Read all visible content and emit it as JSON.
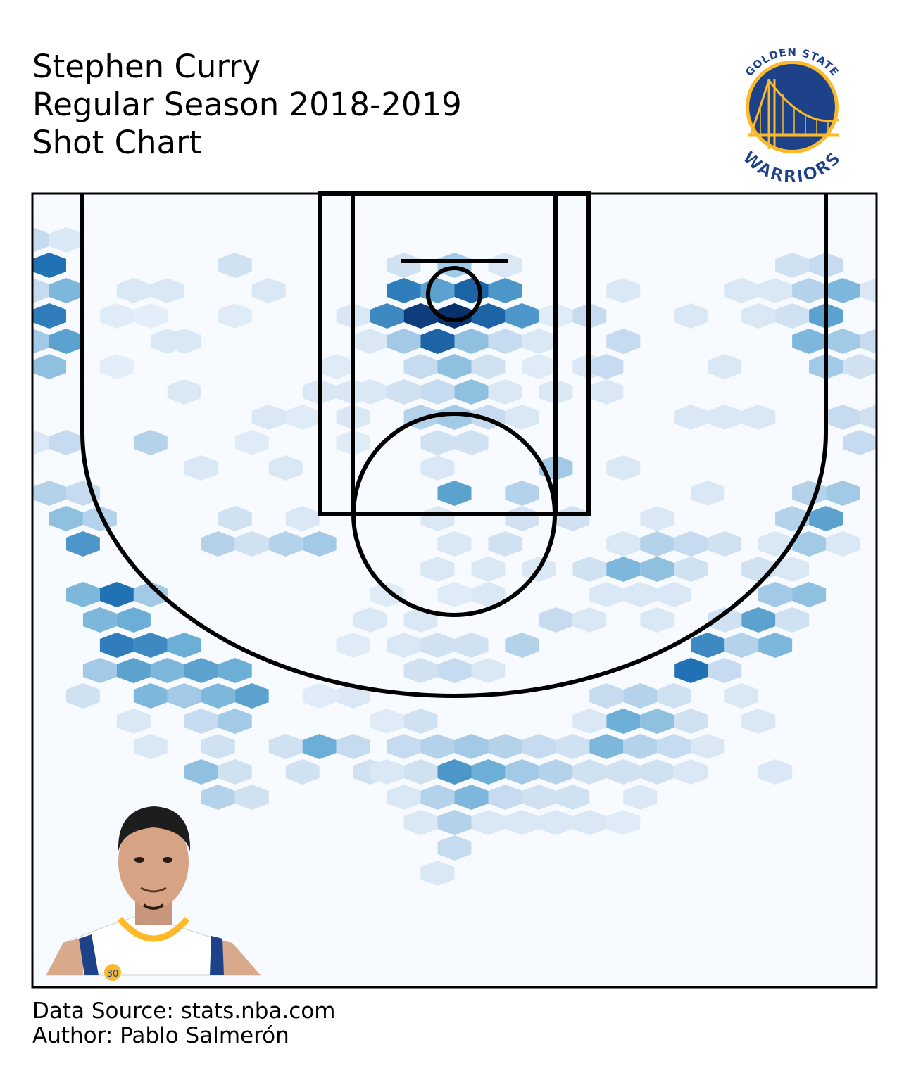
{
  "header": {
    "title_lines": [
      "Stephen Curry",
      "Regular Season 2018-2019",
      "Shot Chart"
    ]
  },
  "logo": {
    "top_text": "GOLDEN STATE",
    "bottom_text": "WARRIORS",
    "colors": {
      "navy": "#1D428A",
      "gold": "#FDB927"
    }
  },
  "footer": {
    "source": "Data Source: stats.nba.com",
    "author": "Author: Pablo Salmerón"
  },
  "player_photo": {
    "jersey_number": "30"
  },
  "chart_data": {
    "type": "heatmap",
    "subtype": "hexbin",
    "title": "",
    "xlabel": "",
    "ylabel": "",
    "colormap": "Blues",
    "grid": false,
    "note": "Shot density on an NBA half court, x from -250 to 250, y from -47.5 to 422.5; intensity 0-1 relative to max bin",
    "xlim": [
      -250,
      250
    ],
    "ylim": [
      -47.5,
      422.5
    ],
    "hex_size": 20,
    "bins": [
      {
        "x": -250,
        "y": -20,
        "v": 0.25
      },
      {
        "x": -230,
        "y": -20,
        "v": 0.15
      },
      {
        "x": -240,
        "y": -5,
        "v": 0.75
      },
      {
        "x": -250,
        "y": 10,
        "v": 0.25
      },
      {
        "x": -230,
        "y": 10,
        "v": 0.45
      },
      {
        "x": -190,
        "y": 10,
        "v": 0.15
      },
      {
        "x": -170,
        "y": 10,
        "v": 0.15
      },
      {
        "x": -240,
        "y": 25,
        "v": 0.7
      },
      {
        "x": -200,
        "y": 25,
        "v": 0.12
      },
      {
        "x": -250,
        "y": 40,
        "v": 0.35
      },
      {
        "x": -230,
        "y": 40,
        "v": 0.55
      },
      {
        "x": -170,
        "y": 40,
        "v": 0.15
      },
      {
        "x": -240,
        "y": 55,
        "v": 0.4
      },
      {
        "x": -250,
        "y": 100,
        "v": 0.15
      },
      {
        "x": -230,
        "y": 100,
        "v": 0.25
      },
      {
        "x": -180,
        "y": 100,
        "v": 0.3
      },
      {
        "x": -240,
        "y": 130,
        "v": 0.3
      },
      {
        "x": -220,
        "y": 130,
        "v": 0.25
      },
      {
        "x": -230,
        "y": 145,
        "v": 0.4
      },
      {
        "x": -210,
        "y": 145,
        "v": 0.3
      },
      {
        "x": -220,
        "y": 160,
        "v": 0.6
      },
      {
        "x": -220,
        "y": 190,
        "v": 0.45
      },
      {
        "x": -200,
        "y": 190,
        "v": 0.75
      },
      {
        "x": -180,
        "y": 190,
        "v": 0.35
      },
      {
        "x": -210,
        "y": 205,
        "v": 0.45
      },
      {
        "x": -190,
        "y": 205,
        "v": 0.5
      },
      {
        "x": -200,
        "y": 220,
        "v": 0.7
      },
      {
        "x": -180,
        "y": 220,
        "v": 0.65
      },
      {
        "x": -160,
        "y": 220,
        "v": 0.5
      },
      {
        "x": -210,
        "y": 235,
        "v": 0.35
      },
      {
        "x": -190,
        "y": 235,
        "v": 0.55
      },
      {
        "x": -170,
        "y": 235,
        "v": 0.45
      },
      {
        "x": -150,
        "y": 235,
        "v": 0.55
      },
      {
        "x": -130,
        "y": 235,
        "v": 0.5
      },
      {
        "x": -220,
        "y": 250,
        "v": 0.2
      },
      {
        "x": -180,
        "y": 250,
        "v": 0.45
      },
      {
        "x": -160,
        "y": 250,
        "v": 0.35
      },
      {
        "x": -140,
        "y": 250,
        "v": 0.45
      },
      {
        "x": -120,
        "y": 250,
        "v": 0.55
      },
      {
        "x": -190,
        "y": 265,
        "v": 0.15
      },
      {
        "x": -150,
        "y": 265,
        "v": 0.25
      },
      {
        "x": -130,
        "y": 265,
        "v": 0.35
      },
      {
        "x": -180,
        "y": 280,
        "v": 0.15
      },
      {
        "x": -140,
        "y": 280,
        "v": 0.2
      },
      {
        "x": -150,
        "y": 295,
        "v": 0.4
      },
      {
        "x": -130,
        "y": 295,
        "v": 0.2
      },
      {
        "x": -140,
        "y": 310,
        "v": 0.3
      },
      {
        "x": -120,
        "y": 310,
        "v": 0.2
      },
      {
        "x": -100,
        "y": 280,
        "v": 0.2
      },
      {
        "x": -80,
        "y": 280,
        "v": 0.5
      },
      {
        "x": -60,
        "y": 280,
        "v": 0.25
      },
      {
        "x": -90,
        "y": 295,
        "v": 0.2
      },
      {
        "x": -50,
        "y": 295,
        "v": 0.2
      },
      {
        "x": -60,
        "y": 250,
        "v": 0.15
      },
      {
        "x": -80,
        "y": 250,
        "v": 0.12
      },
      {
        "x": -40,
        "y": 265,
        "v": 0.12
      },
      {
        "x": -20,
        "y": 265,
        "v": 0.2
      },
      {
        "x": -30,
        "y": 280,
        "v": 0.25
      },
      {
        "x": -10,
        "y": 280,
        "v": 0.3
      },
      {
        "x": 10,
        "y": 280,
        "v": 0.35
      },
      {
        "x": 30,
        "y": 280,
        "v": 0.3
      },
      {
        "x": 50,
        "y": 280,
        "v": 0.25
      },
      {
        "x": 70,
        "y": 280,
        "v": 0.2
      },
      {
        "x": -40,
        "y": 295,
        "v": 0.15
      },
      {
        "x": -20,
        "y": 295,
        "v": 0.2
      },
      {
        "x": 0,
        "y": 295,
        "v": 0.6
      },
      {
        "x": 20,
        "y": 295,
        "v": 0.5
      },
      {
        "x": 40,
        "y": 295,
        "v": 0.35
      },
      {
        "x": 60,
        "y": 295,
        "v": 0.3
      },
      {
        "x": 80,
        "y": 295,
        "v": 0.2
      },
      {
        "x": -30,
        "y": 310,
        "v": 0.15
      },
      {
        "x": -10,
        "y": 310,
        "v": 0.3
      },
      {
        "x": 10,
        "y": 310,
        "v": 0.45
      },
      {
        "x": 30,
        "y": 310,
        "v": 0.25
      },
      {
        "x": 50,
        "y": 310,
        "v": 0.2
      },
      {
        "x": 70,
        "y": 310,
        "v": 0.2
      },
      {
        "x": -20,
        "y": 325,
        "v": 0.15
      },
      {
        "x": 0,
        "y": 325,
        "v": 0.3
      },
      {
        "x": 20,
        "y": 325,
        "v": 0.15
      },
      {
        "x": 40,
        "y": 325,
        "v": 0.15
      },
      {
        "x": 60,
        "y": 325,
        "v": 0.15
      },
      {
        "x": 0,
        "y": 340,
        "v": 0.25
      },
      {
        "x": -10,
        "y": 355,
        "v": 0.15
      },
      {
        "x": -20,
        "y": 235,
        "v": 0.2
      },
      {
        "x": 0,
        "y": 235,
        "v": 0.25
      },
      {
        "x": 20,
        "y": 235,
        "v": 0.15
      },
      {
        "x": -30,
        "y": 220,
        "v": 0.15
      },
      {
        "x": -10,
        "y": 220,
        "v": 0.2
      },
      {
        "x": 10,
        "y": 220,
        "v": 0.2
      },
      {
        "x": 40,
        "y": 220,
        "v": 0.3
      },
      {
        "x": -60,
        "y": 220,
        "v": 0.12
      },
      {
        "x": 60,
        "y": 205,
        "v": 0.25
      },
      {
        "x": -50,
        "y": 205,
        "v": 0.15
      },
      {
        "x": -20,
        "y": 205,
        "v": 0.15
      },
      {
        "x": -40,
        "y": 190,
        "v": 0.12
      },
      {
        "x": 0,
        "y": 190,
        "v": 0.12
      },
      {
        "x": 20,
        "y": 190,
        "v": 0.15
      },
      {
        "x": -10,
        "y": 175,
        "v": 0.15
      },
      {
        "x": 20,
        "y": 175,
        "v": 0.15
      },
      {
        "x": 50,
        "y": 175,
        "v": 0.15
      },
      {
        "x": 0,
        "y": 160,
        "v": 0.15
      },
      {
        "x": 30,
        "y": 160,
        "v": 0.2
      },
      {
        "x": -10,
        "y": 145,
        "v": 0.15
      },
      {
        "x": 40,
        "y": 145,
        "v": 0.2
      },
      {
        "x": 70,
        "y": 145,
        "v": 0.2
      },
      {
        "x": 0,
        "y": 130,
        "v": 0.55
      },
      {
        "x": 40,
        "y": 130,
        "v": 0.3
      },
      {
        "x": -10,
        "y": 115,
        "v": 0.15
      },
      {
        "x": 60,
        "y": 115,
        "v": 0.35
      },
      {
        "x": -140,
        "y": 160,
        "v": 0.3
      },
      {
        "x": -120,
        "y": 160,
        "v": 0.2
      },
      {
        "x": -100,
        "y": 160,
        "v": 0.3
      },
      {
        "x": -80,
        "y": 160,
        "v": 0.35
      },
      {
        "x": -130,
        "y": 145,
        "v": 0.2
      },
      {
        "x": -90,
        "y": 145,
        "v": 0.15
      },
      {
        "x": -150,
        "y": 115,
        "v": 0.15
      },
      {
        "x": -100,
        "y": 115,
        "v": 0.15
      },
      {
        "x": -120,
        "y": 100,
        "v": 0.12
      },
      {
        "x": -60,
        "y": 100,
        "v": 0.12
      },
      {
        "x": -110,
        "y": 85,
        "v": 0.15
      },
      {
        "x": -90,
        "y": 85,
        "v": 0.12
      },
      {
        "x": -80,
        "y": 70,
        "v": 0.15
      },
      {
        "x": -60,
        "y": 70,
        "v": 0.15
      },
      {
        "x": -160,
        "y": 70,
        "v": 0.15
      },
      {
        "x": -160,
        "y": 40,
        "v": 0.15
      },
      {
        "x": -110,
        "y": 10,
        "v": 0.15
      },
      {
        "x": -130,
        "y": 25,
        "v": 0.12
      },
      {
        "x": -130,
        "y": -5,
        "v": 0.2
      },
      {
        "x": -200,
        "y": 55,
        "v": 0.1
      },
      {
        "x": -180,
        "y": 25,
        "v": 0.1
      },
      {
        "x": 0,
        "y": -5,
        "v": 0.35
      },
      {
        "x": -10,
        "y": 10,
        "v": 0.55
      },
      {
        "x": 10,
        "y": 10,
        "v": 0.8
      },
      {
        "x": -30,
        "y": 10,
        "v": 0.7
      },
      {
        "x": 30,
        "y": 10,
        "v": 0.6
      },
      {
        "x": -20,
        "y": 25,
        "v": 0.95
      },
      {
        "x": 0,
        "y": 25,
        "v": 1.0
      },
      {
        "x": -40,
        "y": 25,
        "v": 0.65
      },
      {
        "x": 20,
        "y": 25,
        "v": 0.8
      },
      {
        "x": 40,
        "y": 25,
        "v": 0.6
      },
      {
        "x": -10,
        "y": 40,
        "v": 0.8
      },
      {
        "x": 10,
        "y": 40,
        "v": 0.4
      },
      {
        "x": -30,
        "y": 40,
        "v": 0.35
      },
      {
        "x": 30,
        "y": 40,
        "v": 0.25
      },
      {
        "x": 0,
        "y": 55,
        "v": 0.4
      },
      {
        "x": -20,
        "y": 55,
        "v": 0.25
      },
      {
        "x": 20,
        "y": 55,
        "v": 0.2
      },
      {
        "x": -10,
        "y": 70,
        "v": 0.25
      },
      {
        "x": 10,
        "y": 70,
        "v": 0.4
      },
      {
        "x": -30,
        "y": 70,
        "v": 0.2
      },
      {
        "x": 30,
        "y": 70,
        "v": 0.15
      },
      {
        "x": 0,
        "y": 85,
        "v": 0.35
      },
      {
        "x": -20,
        "y": 85,
        "v": 0.3
      },
      {
        "x": 20,
        "y": 85,
        "v": 0.25
      },
      {
        "x": 40,
        "y": 85,
        "v": 0.15
      },
      {
        "x": -10,
        "y": 100,
        "v": 0.2
      },
      {
        "x": 10,
        "y": 100,
        "v": 0.2
      },
      {
        "x": -50,
        "y": 40,
        "v": 0.15
      },
      {
        "x": -60,
        "y": 25,
        "v": 0.15
      },
      {
        "x": -70,
        "y": 55,
        "v": 0.12
      },
      {
        "x": -50,
        "y": 70,
        "v": 0.15
      },
      {
        "x": -60,
        "y": 85,
        "v": 0.15
      },
      {
        "x": 50,
        "y": 55,
        "v": 0.12
      },
      {
        "x": 60,
        "y": 70,
        "v": 0.15
      },
      {
        "x": 50,
        "y": 40,
        "v": 0.15
      },
      {
        "x": 60,
        "y": 25,
        "v": 0.12
      },
      {
        "x": -30,
        "y": -5,
        "v": 0.2
      },
      {
        "x": 30,
        "y": -5,
        "v": 0.15
      },
      {
        "x": 80,
        "y": 25,
        "v": 0.25
      },
      {
        "x": 80,
        "y": 55,
        "v": 0.15
      },
      {
        "x": 100,
        "y": 10,
        "v": 0.15
      },
      {
        "x": 100,
        "y": 40,
        "v": 0.25
      },
      {
        "x": 90,
        "y": 55,
        "v": 0.25
      },
      {
        "x": 90,
        "y": 70,
        "v": 0.15
      },
      {
        "x": 100,
        "y": 115,
        "v": 0.15
      },
      {
        "x": 140,
        "y": 25,
        "v": 0.15
      },
      {
        "x": 170,
        "y": 10,
        "v": 0.15
      },
      {
        "x": 180,
        "y": 25,
        "v": 0.15
      },
      {
        "x": 160,
        "y": 55,
        "v": 0.15
      },
      {
        "x": 140,
        "y": 85,
        "v": 0.15
      },
      {
        "x": 160,
        "y": 85,
        "v": 0.15
      },
      {
        "x": 180,
        "y": 85,
        "v": 0.15
      },
      {
        "x": 150,
        "y": 130,
        "v": 0.15
      },
      {
        "x": 200,
        "y": -5,
        "v": 0.2
      },
      {
        "x": 220,
        "y": -5,
        "v": 0.25
      },
      {
        "x": 190,
        "y": 10,
        "v": 0.15
      },
      {
        "x": 210,
        "y": 10,
        "v": 0.3
      },
      {
        "x": 230,
        "y": 10,
        "v": 0.45
      },
      {
        "x": 250,
        "y": 10,
        "v": 0.15
      },
      {
        "x": 200,
        "y": 25,
        "v": 0.2
      },
      {
        "x": 220,
        "y": 25,
        "v": 0.55
      },
      {
        "x": 210,
        "y": 40,
        "v": 0.45
      },
      {
        "x": 230,
        "y": 40,
        "v": 0.35
      },
      {
        "x": 250,
        "y": 40,
        "v": 0.25
      },
      {
        "x": 220,
        "y": 55,
        "v": 0.35
      },
      {
        "x": 240,
        "y": 55,
        "v": 0.2
      },
      {
        "x": 230,
        "y": 85,
        "v": 0.25
      },
      {
        "x": 250,
        "y": 85,
        "v": 0.2
      },
      {
        "x": 240,
        "y": 100,
        "v": 0.25
      },
      {
        "x": 210,
        "y": 130,
        "v": 0.3
      },
      {
        "x": 230,
        "y": 130,
        "v": 0.35
      },
      {
        "x": 220,
        "y": 145,
        "v": 0.55
      },
      {
        "x": 200,
        "y": 145,
        "v": 0.3
      },
      {
        "x": 230,
        "y": 160,
        "v": 0.15
      },
      {
        "x": 210,
        "y": 160,
        "v": 0.35
      },
      {
        "x": 190,
        "y": 160,
        "v": 0.15
      },
      {
        "x": 200,
        "y": 175,
        "v": 0.15
      },
      {
        "x": 180,
        "y": 175,
        "v": 0.2
      },
      {
        "x": 210,
        "y": 190,
        "v": 0.4
      },
      {
        "x": 190,
        "y": 190,
        "v": 0.35
      },
      {
        "x": 200,
        "y": 205,
        "v": 0.2
      },
      {
        "x": 180,
        "y": 205,
        "v": 0.55
      },
      {
        "x": 190,
        "y": 220,
        "v": 0.45
      },
      {
        "x": 170,
        "y": 220,
        "v": 0.3
      },
      {
        "x": 150,
        "y": 220,
        "v": 0.65
      },
      {
        "x": 160,
        "y": 235,
        "v": 0.25
      },
      {
        "x": 140,
        "y": 235,
        "v": 0.75
      },
      {
        "x": 120,
        "y": 145,
        "v": 0.15
      },
      {
        "x": 100,
        "y": 160,
        "v": 0.15
      },
      {
        "x": 120,
        "y": 160,
        "v": 0.3
      },
      {
        "x": 140,
        "y": 160,
        "v": 0.25
      },
      {
        "x": 160,
        "y": 160,
        "v": 0.2
      },
      {
        "x": 80,
        "y": 175,
        "v": 0.2
      },
      {
        "x": 100,
        "y": 175,
        "v": 0.45
      },
      {
        "x": 120,
        "y": 175,
        "v": 0.4
      },
      {
        "x": 140,
        "y": 175,
        "v": 0.2
      },
      {
        "x": 110,
        "y": 190,
        "v": 0.15
      },
      {
        "x": 130,
        "y": 190,
        "v": 0.15
      },
      {
        "x": 90,
        "y": 190,
        "v": 0.15
      },
      {
        "x": 80,
        "y": 205,
        "v": 0.15
      },
      {
        "x": 120,
        "y": 205,
        "v": 0.15
      },
      {
        "x": 160,
        "y": 205,
        "v": 0.2
      },
      {
        "x": 170,
        "y": 250,
        "v": 0.15
      },
      {
        "x": 130,
        "y": 250,
        "v": 0.2
      },
      {
        "x": 110,
        "y": 250,
        "v": 0.3
      },
      {
        "x": 90,
        "y": 250,
        "v": 0.25
      },
      {
        "x": 100,
        "y": 265,
        "v": 0.5
      },
      {
        "x": 120,
        "y": 265,
        "v": 0.4
      },
      {
        "x": 140,
        "y": 265,
        "v": 0.2
      },
      {
        "x": 180,
        "y": 265,
        "v": 0.15
      },
      {
        "x": 80,
        "y": 265,
        "v": 0.15
      },
      {
        "x": 90,
        "y": 280,
        "v": 0.45
      },
      {
        "x": 110,
        "y": 280,
        "v": 0.3
      },
      {
        "x": 130,
        "y": 280,
        "v": 0.25
      },
      {
        "x": 150,
        "y": 280,
        "v": 0.15
      },
      {
        "x": 100,
        "y": 295,
        "v": 0.2
      },
      {
        "x": 120,
        "y": 295,
        "v": 0.2
      },
      {
        "x": 140,
        "y": 295,
        "v": 0.15
      },
      {
        "x": 110,
        "y": 310,
        "v": 0.15
      },
      {
        "x": 190,
        "y": 295,
        "v": 0.15
      },
      {
        "x": 80,
        "y": 325,
        "v": 0.15
      },
      {
        "x": 100,
        "y": 325,
        "v": 0.12
      }
    ]
  }
}
